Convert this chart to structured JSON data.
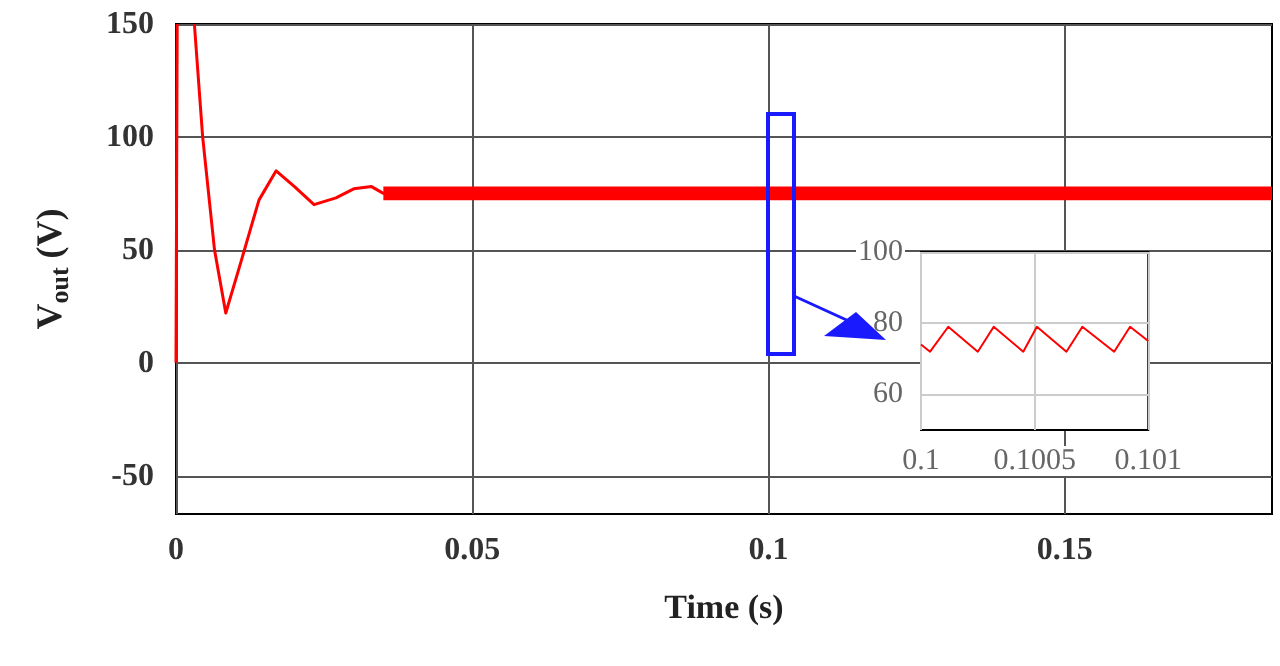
{
  "chart_data": [
    {
      "type": "line",
      "xlabel": "Time (s)",
      "ylabel": "V$_{out}$ (V)",
      "x": [
        0,
        0.0002,
        0.001,
        0.0031,
        0.0045,
        0.0065,
        0.0084,
        0.011,
        0.014,
        0.0169,
        0.02,
        0.0233,
        0.027,
        0.03,
        0.033,
        0.035,
        0.05,
        0.1,
        0.15,
        0.185
      ],
      "series": [
        {
          "color": "#ff0000",
          "values": [
            0,
            150,
            null,
            150,
            100,
            50,
            22,
            45,
            72,
            85,
            78,
            70,
            73,
            77,
            78,
            75,
            75,
            75,
            75,
            75
          ],
          "lower": [
            null,
            null,
            null,
            null,
            null,
            null,
            null,
            null,
            null,
            null,
            null,
            null,
            null,
            null,
            null,
            72,
            72,
            72,
            72,
            72
          ],
          "upper": [
            null,
            null,
            null,
            null,
            null,
            null,
            null,
            null,
            null,
            null,
            null,
            null,
            null,
            null,
            null,
            78,
            78,
            78,
            78,
            78
          ]
        }
      ],
      "xlim": [
        0,
        0.185
      ],
      "ylim": [
        -67,
        150
      ],
      "xticks": [
        0,
        0.05,
        0.1,
        0.15
      ],
      "yticks": [
        -50,
        0,
        50,
        100,
        150
      ],
      "grid": true
    },
    {
      "type": "line",
      "x": [
        0.1,
        0.10004,
        0.10012,
        0.10025,
        0.10032,
        0.10045,
        0.10051,
        0.10064,
        0.10071,
        0.10085,
        0.10092,
        0.101
      ],
      "series": [
        {
          "color": "#ff0000",
          "values": [
            74,
            72,
            79,
            72,
            79,
            72,
            79,
            72,
            79,
            72,
            79,
            75
          ]
        }
      ],
      "xlim": [
        0.1,
        0.101
      ],
      "ylim": [
        50,
        100
      ],
      "xticks": [
        0.1,
        0.1005,
        0.101
      ],
      "yticks": [
        60,
        80,
        100
      ],
      "grid": true
    }
  ]
}
